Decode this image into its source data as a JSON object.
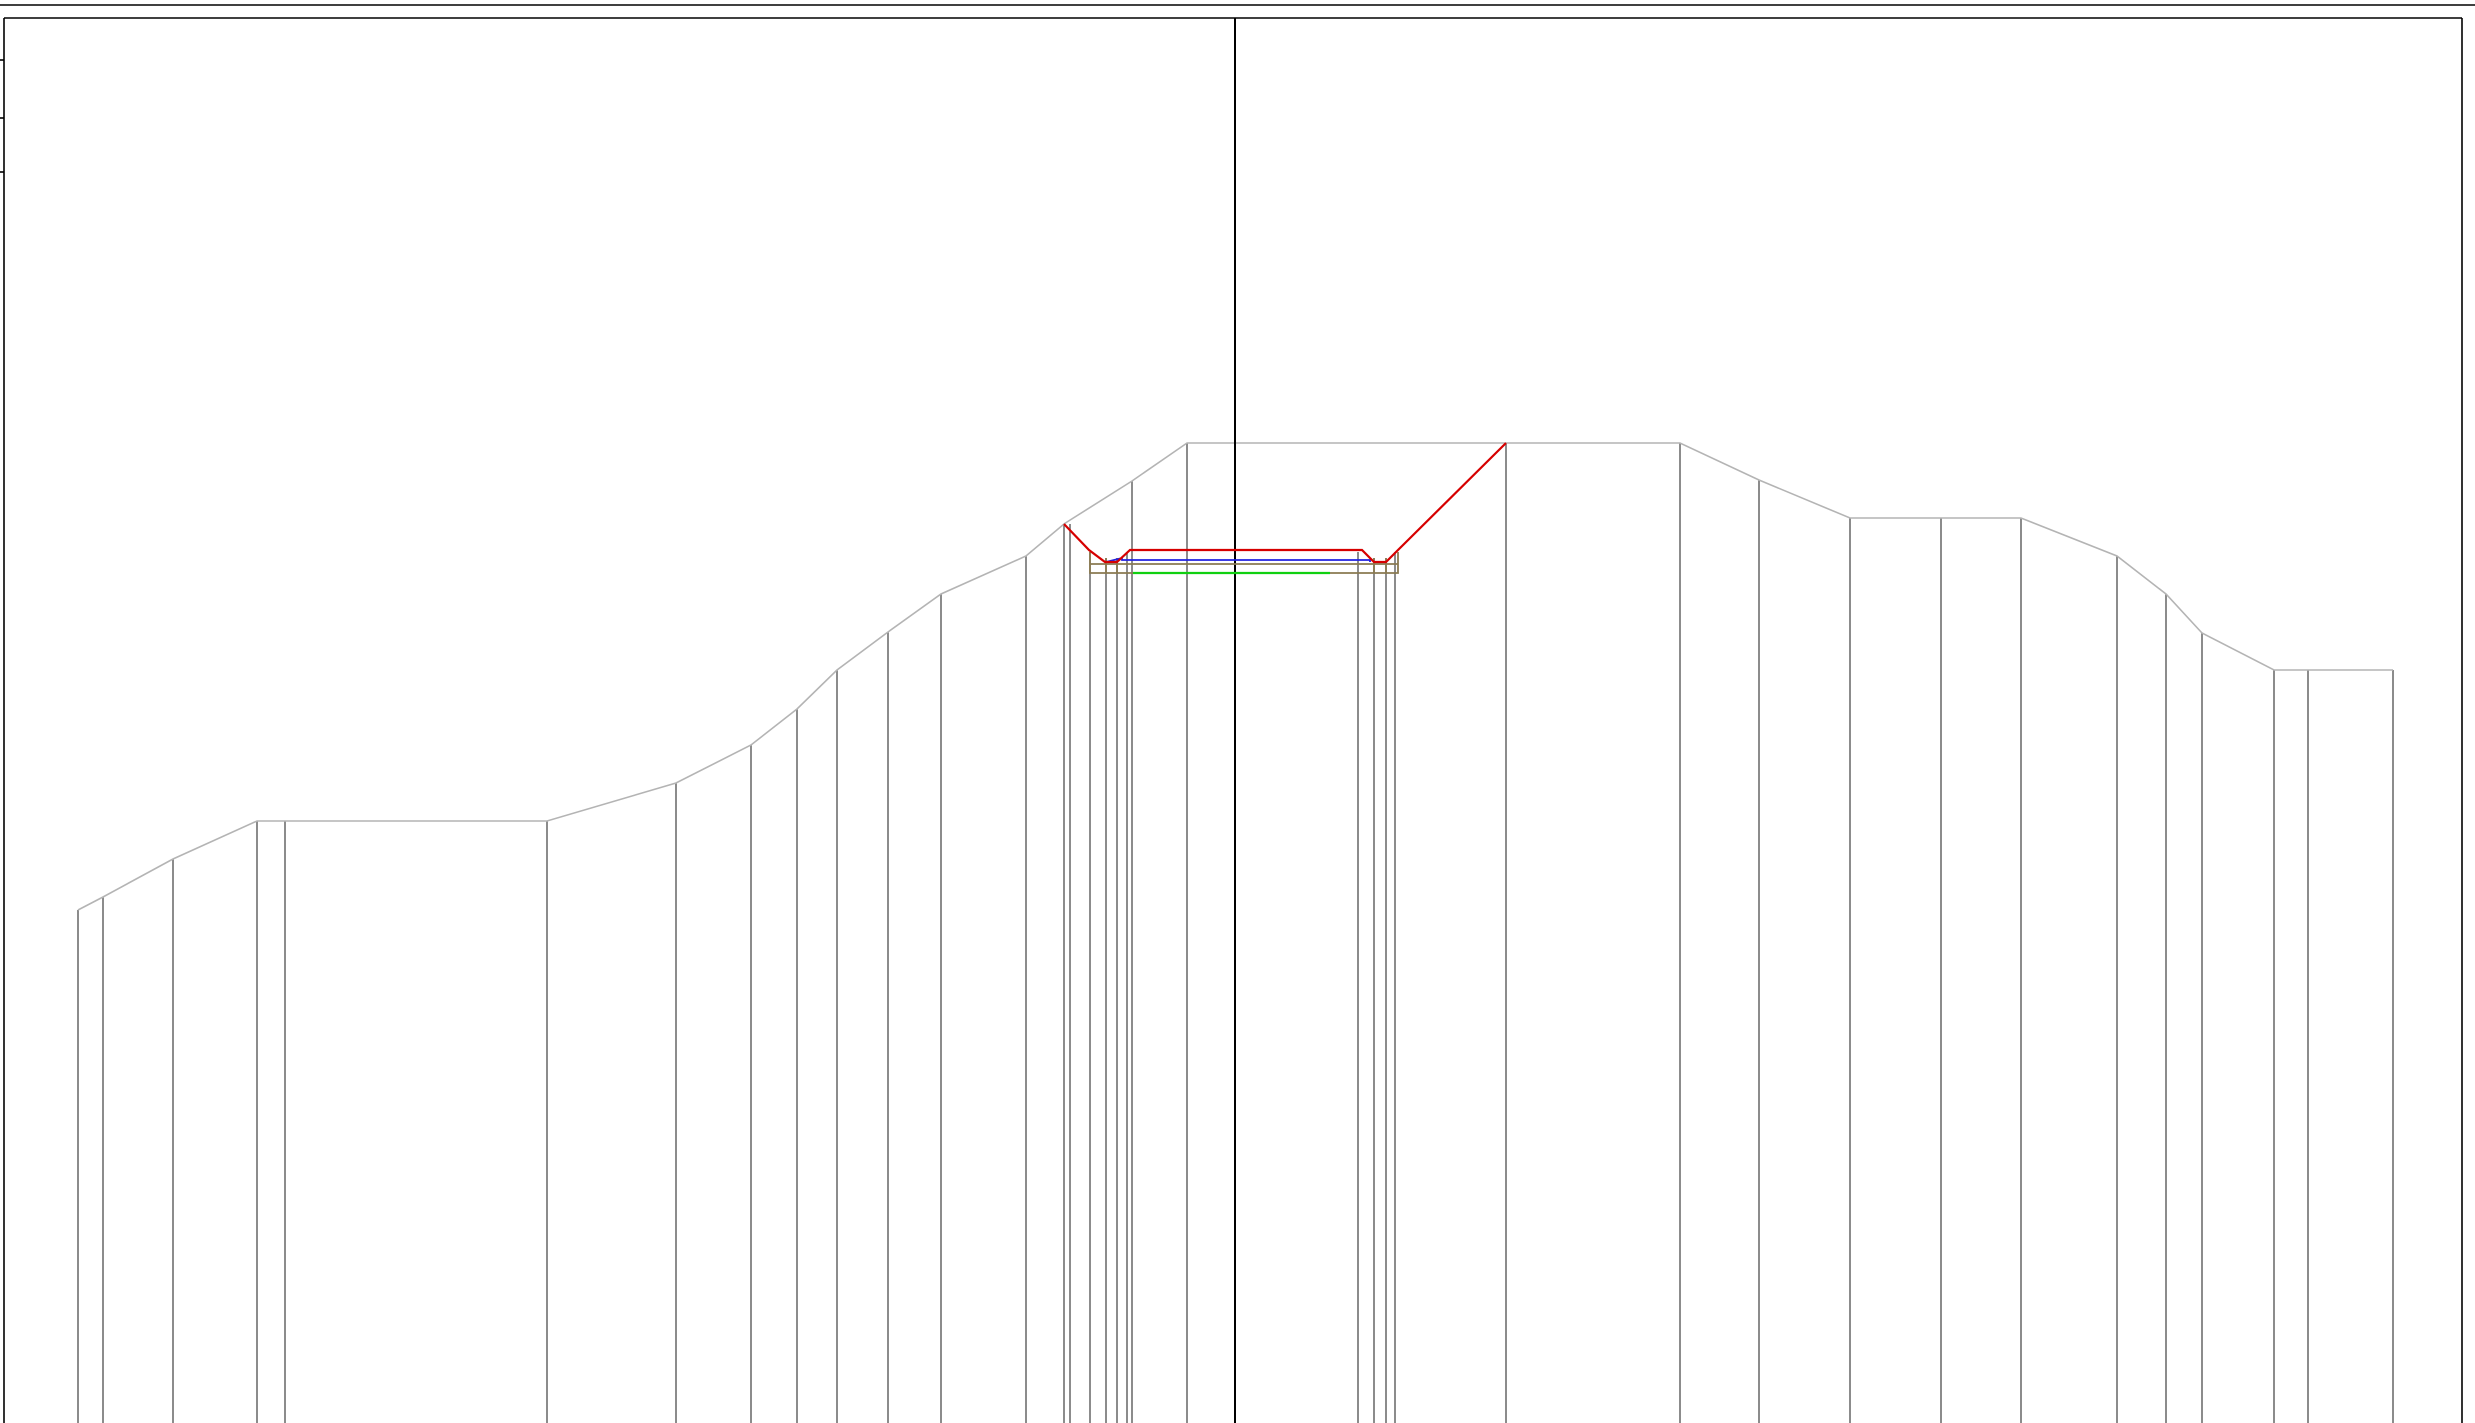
{
  "diagram": {
    "type": "cross-section-profile",
    "colors": {
      "ground": "#b4b4b4",
      "stations": "#707070",
      "grade_line": "#d60000",
      "design_surface": "#2020e0",
      "subgrade": "#10d010",
      "pavement_layers": "#8a7a50",
      "frame": "#000000"
    }
  }
}
